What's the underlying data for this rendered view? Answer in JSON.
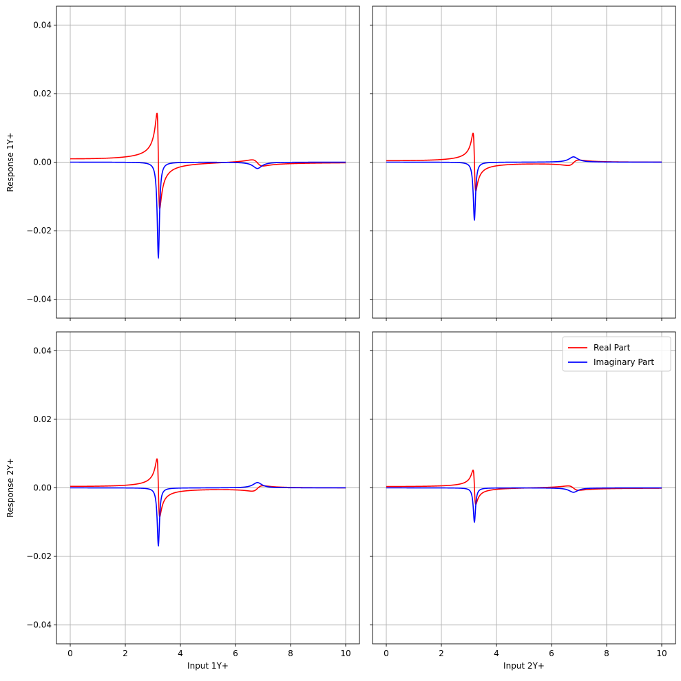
{
  "chart_data": [
    {
      "type": "line",
      "panel": "top-left",
      "xlabel": "",
      "ylabel": "Response 1Y+",
      "xlim": [
        -0.5,
        10.5
      ],
      "ylim": [
        -0.0455,
        0.0455
      ],
      "xticks": [
        0,
        2,
        4,
        6,
        8,
        10
      ],
      "yticks": [
        -0.04,
        -0.02,
        0.0,
        0.02,
        0.04
      ],
      "show_xtick_labels": false,
      "show_ytick_labels": true,
      "grid": true,
      "legend": false,
      "resonances": {
        "A1": 0.0089,
        "A2": 0.005,
        "w1": 3.2,
        "w2": 6.8,
        "g1": 0.1,
        "g2": 0.4
      },
      "series": [
        {
          "name": "Real Part",
          "color": "#ff0000",
          "key": "real"
        },
        {
          "name": "Imaginary Part",
          "color": "#0000ff",
          "key": "imag"
        }
      ]
    },
    {
      "type": "line",
      "panel": "top-right",
      "xlabel": "",
      "ylabel": "",
      "xlim": [
        -0.5,
        10.5
      ],
      "ylim": [
        -0.0455,
        0.0455
      ],
      "xticks": [
        0,
        2,
        4,
        6,
        8,
        10
      ],
      "yticks": [
        -0.04,
        -0.02,
        0.0,
        0.02,
        0.04
      ],
      "show_xtick_labels": false,
      "show_ytick_labels": false,
      "grid": true,
      "legend": false,
      "resonances": {
        "A1": 0.0054,
        "A2": -0.0042,
        "w1": 3.2,
        "w2": 6.8,
        "g1": 0.1,
        "g2": 0.4
      },
      "series": [
        {
          "name": "Real Part",
          "color": "#ff0000",
          "key": "real"
        },
        {
          "name": "Imaginary Part",
          "color": "#0000ff",
          "key": "imag"
        }
      ]
    },
    {
      "type": "line",
      "panel": "bottom-left",
      "xlabel": "Input 1Y+",
      "ylabel": "Response 2Y+",
      "xlim": [
        -0.5,
        10.5
      ],
      "ylim": [
        -0.0455,
        0.0455
      ],
      "xticks": [
        0,
        2,
        4,
        6,
        8,
        10
      ],
      "yticks": [
        -0.04,
        -0.02,
        0.0,
        0.02,
        0.04
      ],
      "show_xtick_labels": true,
      "show_ytick_labels": true,
      "grid": true,
      "legend": false,
      "resonances": {
        "A1": 0.0054,
        "A2": -0.0042,
        "w1": 3.2,
        "w2": 6.8,
        "g1": 0.1,
        "g2": 0.4
      },
      "series": [
        {
          "name": "Real Part",
          "color": "#ff0000",
          "key": "real"
        },
        {
          "name": "Imaginary Part",
          "color": "#0000ff",
          "key": "imag"
        }
      ]
    },
    {
      "type": "line",
      "panel": "bottom-right",
      "xlabel": "Input 2Y+",
      "ylabel": "",
      "xlim": [
        -0.5,
        10.5
      ],
      "ylim": [
        -0.0455,
        0.0455
      ],
      "xticks": [
        0,
        2,
        4,
        6,
        8,
        10
      ],
      "yticks": [
        -0.04,
        -0.02,
        0.0,
        0.02,
        0.04
      ],
      "show_xtick_labels": true,
      "show_ytick_labels": false,
      "grid": true,
      "legend": true,
      "legend_location": "top-right",
      "resonances": {
        "A1": 0.0032,
        "A2": 0.0035,
        "w1": 3.2,
        "w2": 6.8,
        "g1": 0.1,
        "g2": 0.4
      },
      "series": [
        {
          "name": "Real Part",
          "color": "#ff0000",
          "key": "real"
        },
        {
          "name": "Imaginary Part",
          "color": "#0000ff",
          "key": "imag"
        }
      ]
    }
  ],
  "ytick_texts": [
    "−0.04",
    "−0.02",
    "0.00",
    "0.02",
    "0.04"
  ],
  "xtick_texts": [
    "0",
    "2",
    "4",
    "6",
    "8",
    "10"
  ],
  "legend": {
    "real_label": "Real Part",
    "imag_label": "Imaginary Part"
  },
  "colors": {
    "real": "#ff0000",
    "imag": "#0000ff",
    "grid": "#b0b0b0"
  }
}
